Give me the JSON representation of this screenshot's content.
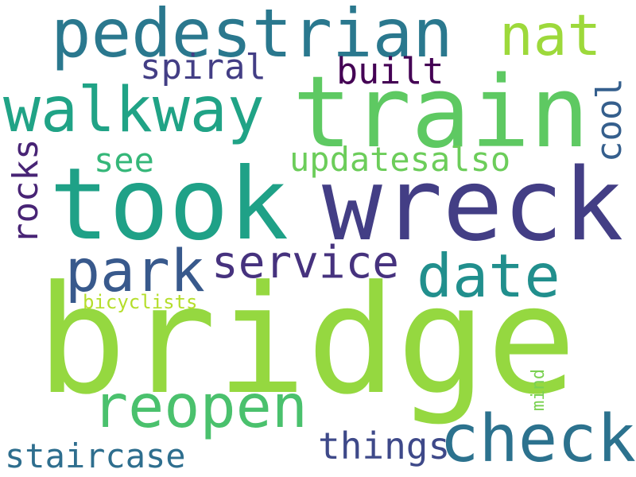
{
  "cloud": {
    "background": "#ffffff",
    "words": {
      "bridge": {
        "text": "bridge",
        "color": "#95d840"
      },
      "wreck": {
        "text": "wreck",
        "color": "#433e85"
      },
      "took": {
        "text": "took",
        "color": "#1fa187"
      },
      "train": {
        "text": "train",
        "color": "#5ec962"
      },
      "pedestrian": {
        "text": "pedestrian",
        "color": "#2a788e"
      },
      "walkway": {
        "text": "walkway",
        "color": "#20a386"
      },
      "reopen": {
        "text": "reopen",
        "color": "#4ac16d"
      },
      "check": {
        "text": "check",
        "color": "#2c728e"
      },
      "date": {
        "text": "date",
        "color": "#218f8d"
      },
      "park": {
        "text": "park",
        "color": "#38598c"
      },
      "nat": {
        "text": "nat",
        "color": "#9dd93b"
      },
      "service": {
        "text": "service",
        "color": "#46327e"
      },
      "updatesalso": {
        "text": "updatesalso",
        "color": "#6ccd5a"
      },
      "staircase": {
        "text": "staircase",
        "color": "#2e6e8e"
      },
      "things": {
        "text": "things",
        "color": "#3e4989"
      },
      "spiral": {
        "text": "spiral",
        "color": "#433e85"
      },
      "built": {
        "text": "built",
        "color": "#440154"
      },
      "see": {
        "text": "see",
        "color": "#35b779"
      },
      "bicyclists": {
        "text": "bicyclists",
        "color": "#b5de2b"
      },
      "rocks": {
        "text": "rocks",
        "color": "#482475"
      },
      "cool": {
        "text": "cool",
        "color": "#355f8d"
      },
      "mind": {
        "text": "mind",
        "color": "#7ad151"
      }
    }
  }
}
